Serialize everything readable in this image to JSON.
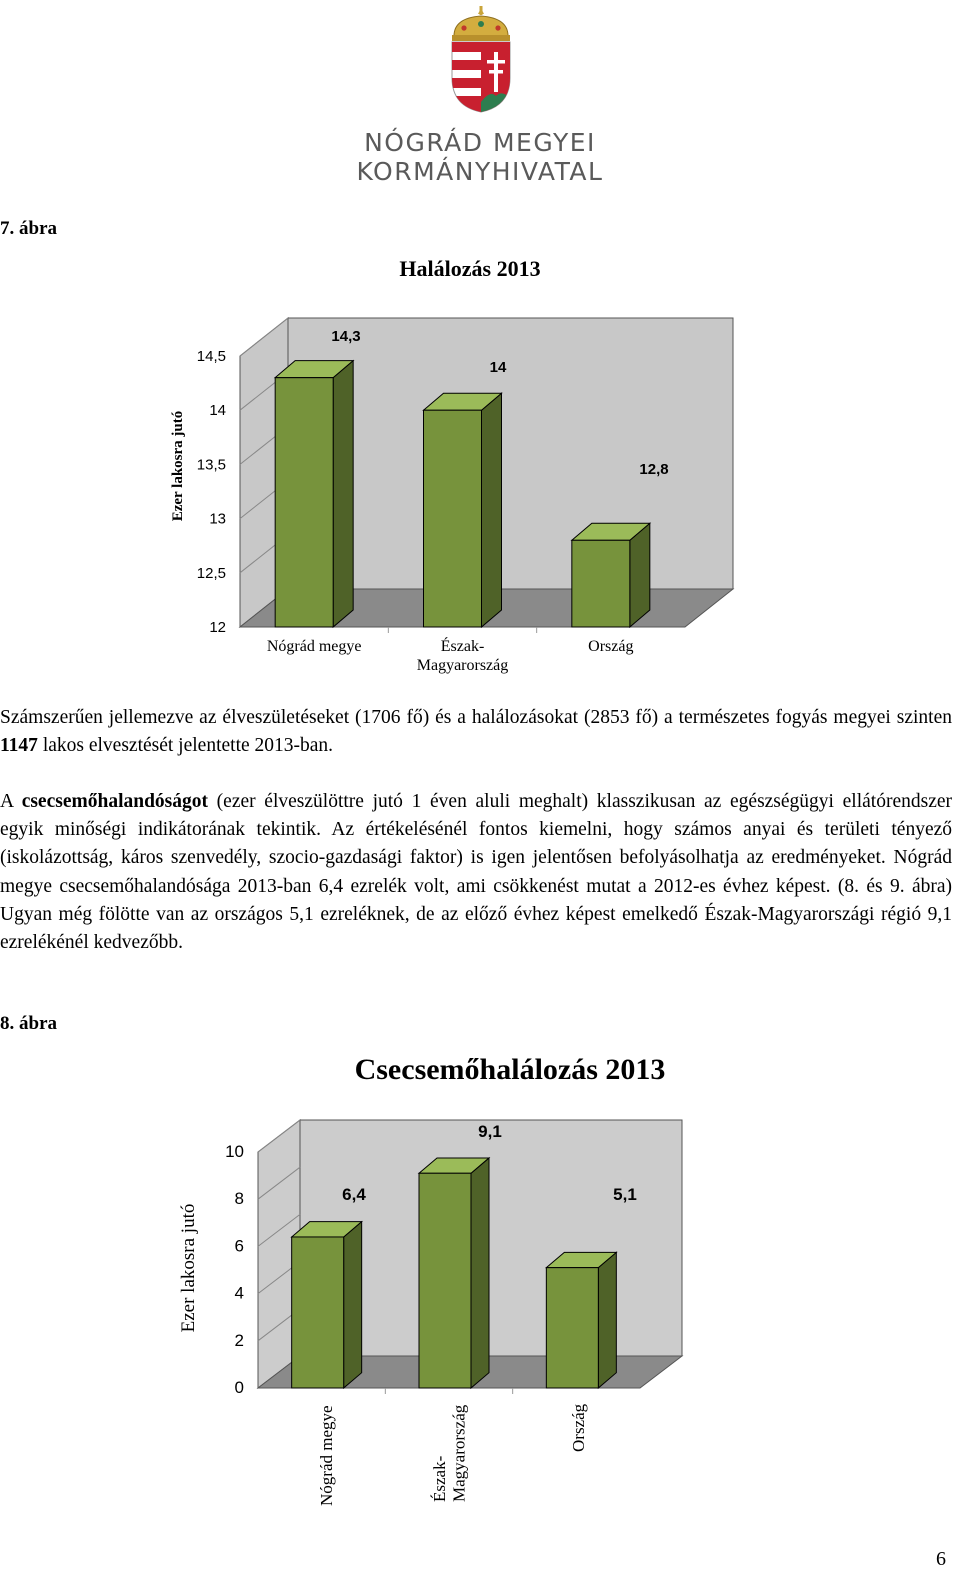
{
  "header": {
    "org_line1": "NÓGRÁD MEGYEI",
    "org_line2": "KORMÁNYHIVATAL"
  },
  "fig7": {
    "label": "7. ábra",
    "chart_data": {
      "type": "bar",
      "title": "Halálozás 2013",
      "ylabel": "Ezer lakosra jutó",
      "xlabel": "",
      "categories": [
        "Nógrád megye",
        "Észak-Magyarország",
        "Ország"
      ],
      "category_lines": [
        [
          "Nógrád megye"
        ],
        [
          "Észak-",
          "Magyarország"
        ],
        [
          "Ország"
        ]
      ],
      "values": [
        14.3,
        14,
        12.8
      ],
      "data_labels": [
        "14,3",
        "14",
        "12,8"
      ],
      "ylim": [
        12,
        14.5
      ],
      "yticks": [
        12,
        12.5,
        13,
        13.5,
        14,
        14.5
      ],
      "ytick_labels": [
        "12",
        "12,5",
        "13",
        "13,5",
        "14",
        "14,5"
      ],
      "grid": false,
      "legend": "none",
      "bar_color": "#77933c"
    }
  },
  "para1": {
    "t1": "Számszerűen jellemezve az élveszületéseket (1706 fő) és a halálozásokat (2853 fő) a természetes fogyás megyei szinten ",
    "bold": "1147",
    "t2": " lakos elvesztését jelentette 2013-ban."
  },
  "para2": {
    "t1": "A ",
    "bold": "csecsemőhalandóságot",
    "t2": " (ezer élveszülöttre jutó 1 éven aluli meghalt) klasszikusan az egészségügyi ellátórendszer egyik minőségi indikátorának tekintik. Az értékelésénél fontos kiemelni, hogy számos anyai és területi tényező (iskolázottság, káros szenvedély, szocio-gazdasági faktor) is igen jelentősen befolyásolhatja az eredményeket. Nógrád megye csecsemőhalandósága 2013-ban 6,4 ezrelék volt, ami csökkenést mutat a 2012-es évhez képest. (8. és 9. ábra) Ugyan még fölötte van az országos 5,1 ezreléknek, de az előző évhez képest emelkedő Észak-Magyarországi régió 9,1 ezrelékénél kedvezőbb."
  },
  "fig8": {
    "label": "8. ábra",
    "chart_data": {
      "type": "bar",
      "title": "Csecsemőhalálozás 2013",
      "ylabel": "Ezer lakosra jutó",
      "xlabel": "",
      "categories": [
        "Nógrád megye",
        "Észak-Magyarország",
        "Ország"
      ],
      "category_lines": [
        [
          "Nógrád megye"
        ],
        [
          "Észak-",
          "Magyarország"
        ],
        [
          "Ország"
        ]
      ],
      "values": [
        6.4,
        9.1,
        5.1
      ],
      "data_labels": [
        "6,4",
        "9,1",
        "5,1"
      ],
      "ylim": [
        0,
        10
      ],
      "yticks": [
        0,
        2,
        4,
        6,
        8,
        10
      ],
      "ytick_labels": [
        "0",
        "2",
        "4",
        "6",
        "8",
        "10"
      ],
      "grid": false,
      "legend": "none",
      "bar_color": "#77933c"
    }
  },
  "footer": {
    "page_number": "6"
  }
}
